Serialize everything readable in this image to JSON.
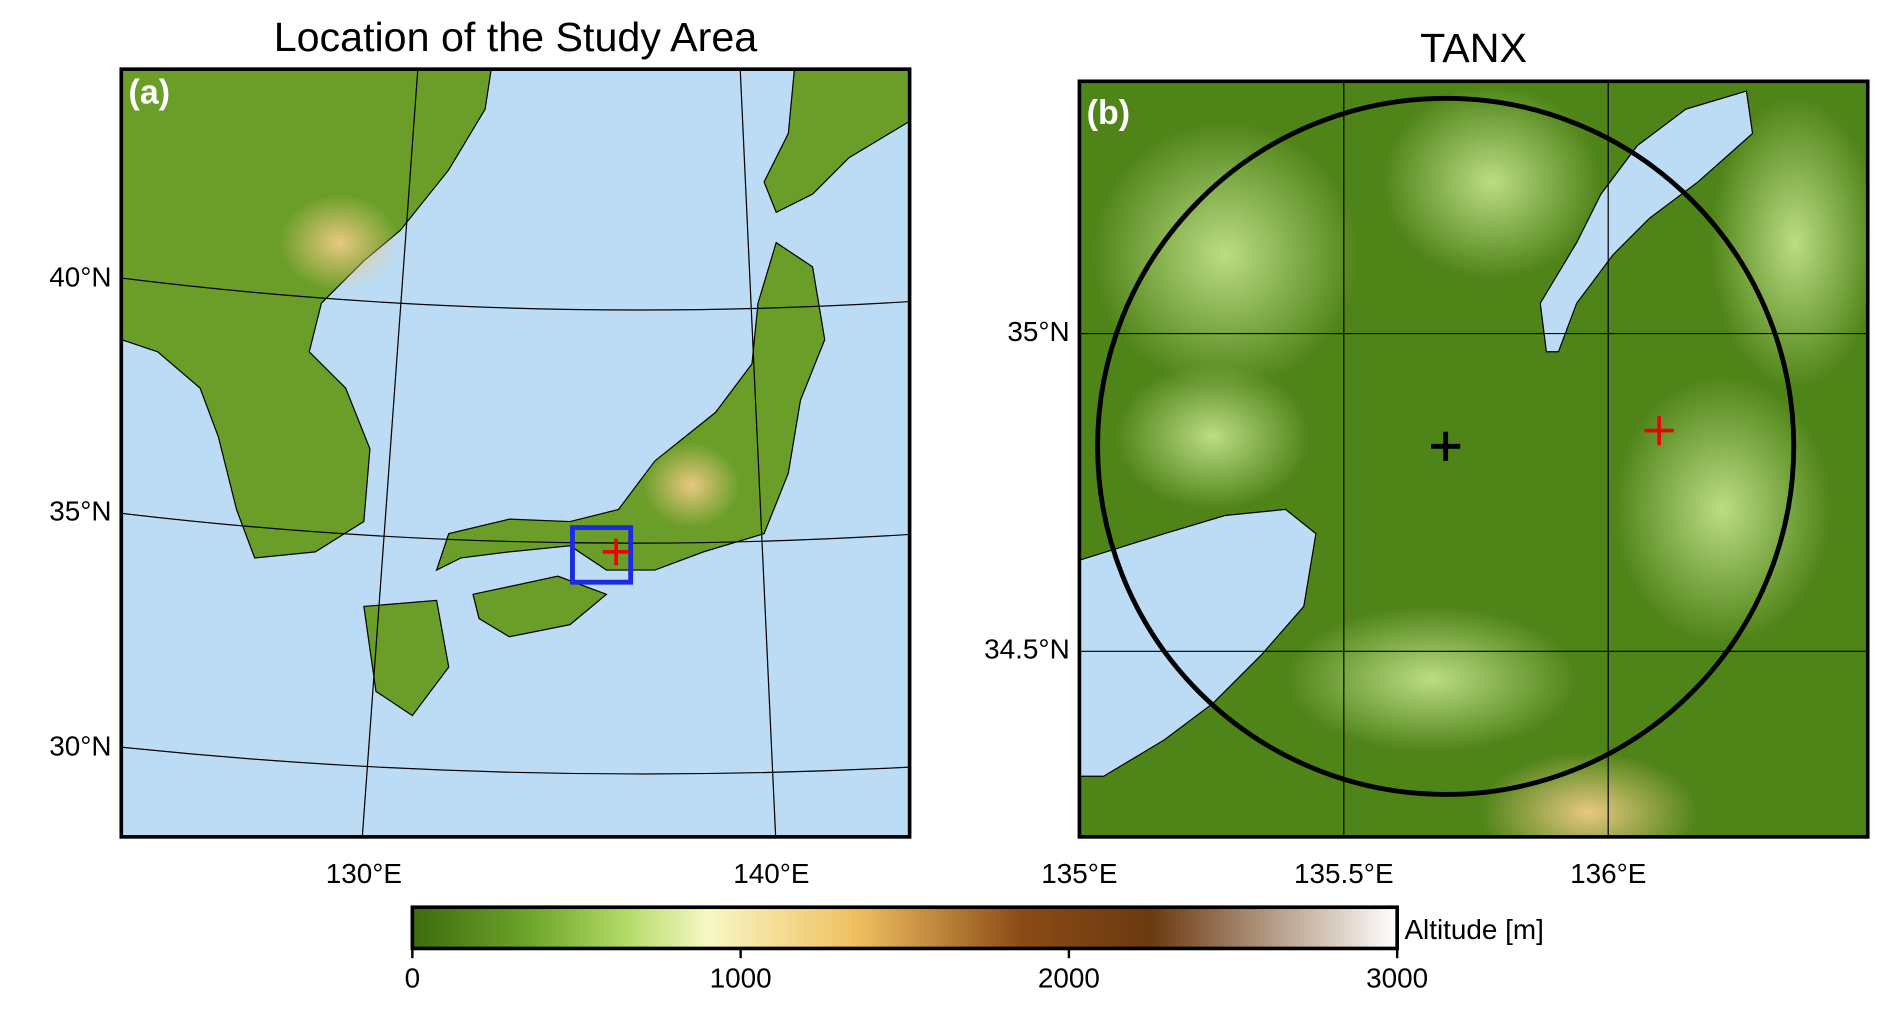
{
  "panel_a": {
    "title": "Location of the Study Area",
    "label": "(a)",
    "lat_labels": [
      "40°N",
      "35°N",
      "30°N"
    ],
    "lon_labels": [
      "130°E",
      "140°E"
    ]
  },
  "panel_b": {
    "title": "TANX",
    "label": "(b)",
    "lat_labels": [
      "35°N",
      "34.5°N"
    ],
    "lon_labels": [
      "135°E",
      "135.5°E",
      "136°E"
    ]
  },
  "colorbar": {
    "label": "Altitude [m]",
    "range": [
      0,
      3000
    ],
    "ticks": [
      0,
      1000,
      2000,
      3000
    ]
  }
}
